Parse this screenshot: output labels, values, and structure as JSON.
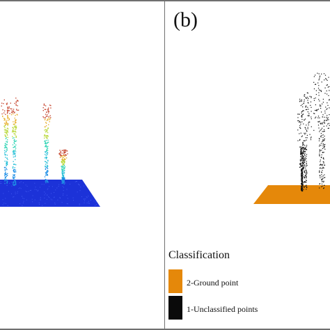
{
  "panels": [
    {
      "label": "",
      "display": "height-colored point cloud: trees over flat ground",
      "colors": {
        "ground": "#1c32d8",
        "stem_low": "#1f8fe6",
        "stem_mid": "#3ad6b8",
        "crown": "#c84b35"
      }
    },
    {
      "label": "(b)",
      "display": "classified point cloud: trees over flat ground",
      "colors": {
        "ground": "#e5880a",
        "points": "#111111"
      }
    }
  ],
  "legend": {
    "title": "Classification",
    "items": [
      {
        "label": "2-Ground point",
        "color": "#e5880a"
      },
      {
        "label": "1-Unclassified points",
        "color": "#0a0a0a"
      }
    ]
  }
}
